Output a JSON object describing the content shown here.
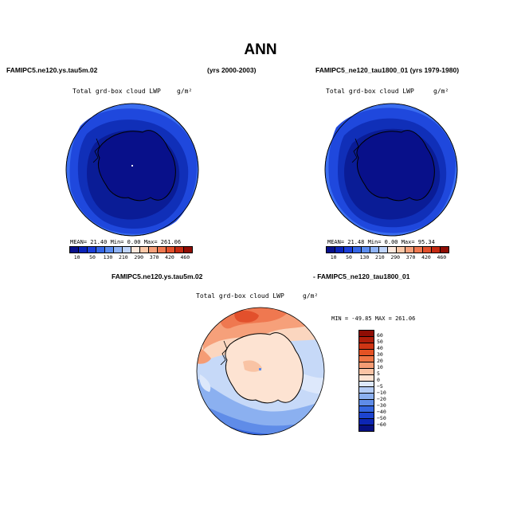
{
  "page": {
    "title": "ANN"
  },
  "left_panel": {
    "case_name": "FAMIPC5.ne120.ys.tau5m.02",
    "years": "(yrs 2000-2003)",
    "variable": "Total grd-box cloud LWP",
    "units": "g/m²",
    "stats": "MEAN=  21.40  Min=   0.00  Max= 261.06"
  },
  "right_panel": {
    "case_name": "FAMIPC5_ne120_tau1800_01 (yrs 1979-1980)",
    "variable": "Total grd-box cloud LWP",
    "units": "g/m²",
    "stats": "MEAN=  21.48  Min=   0.00  Max=  95.34"
  },
  "diff_panel": {
    "case_a": "FAMIPC5.ne120.ys.tau5m.02",
    "case_b": "- FAMIPC5_ne120_tau1800_01",
    "variable": "Total grd-box cloud LWP",
    "units": "g/m²",
    "stats": "MIN = -49.85 MAX = 261.06"
  },
  "colorbar_main": {
    "labels": [
      "10",
      "50",
      "130",
      "210",
      "290",
      "370",
      "420",
      "460"
    ],
    "colors": [
      "#08108a",
      "#0a23b8",
      "#1b3ed8",
      "#3566e6",
      "#5b8cf0",
      "#8fb3f6",
      "#bfd4fa",
      "#fde8dc",
      "#fbc8a8",
      "#f6a07a",
      "#ef7850",
      "#e2502c",
      "#c42a12",
      "#8f0d04"
    ]
  },
  "colorbar_diff": {
    "labels": [
      "60",
      "50",
      "40",
      "30",
      "20",
      "10",
      "5",
      "0",
      "−5",
      "−10",
      "−20",
      "−30",
      "−40",
      "−50",
      "−60"
    ],
    "colors": [
      "#8f0d04",
      "#b01e0a",
      "#cf3514",
      "#e45224",
      "#f07646",
      "#f59c74",
      "#f9c3a4",
      "#fde3d2",
      "#dde8fb",
      "#b5cdf6",
      "#8bb0f0",
      "#5f8ce8",
      "#3566e0",
      "#1d44d0",
      "#0d26b4",
      "#071082"
    ]
  }
}
